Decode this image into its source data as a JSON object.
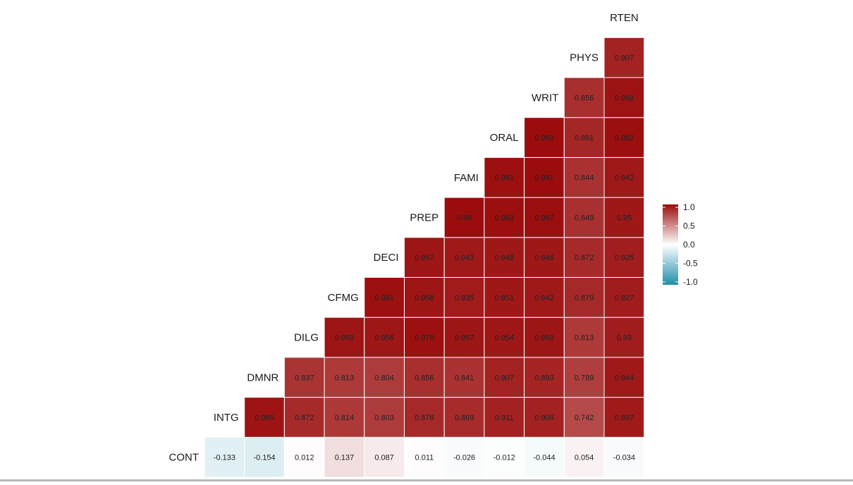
{
  "chart_data": {
    "type": "heatmap",
    "variables": [
      "CONT",
      "INTG",
      "DMNR",
      "DILG",
      "CFMG",
      "DECI",
      "PREP",
      "FAMI",
      "ORAL",
      "WRIT",
      "PHYS",
      "RTEN"
    ],
    "row_labels": [
      "CONT",
      "INTG",
      "DMNR",
      "DILG",
      "CFMG",
      "DECI",
      "PREP",
      "FAMI",
      "ORAL",
      "WRIT",
      "PHYS",
      "RTEN"
    ],
    "column_labels": [
      "INTG",
      "DMNR",
      "DILG",
      "CFMG",
      "DECI",
      "PREP",
      "FAMI",
      "ORAL",
      "WRIT",
      "PHYS",
      "RTEN"
    ],
    "cells": [
      {
        "row": "CONT",
        "col": "INTG",
        "value": -0.133,
        "label": "-0.133"
      },
      {
        "row": "CONT",
        "col": "DMNR",
        "value": -0.154,
        "label": "-0.154"
      },
      {
        "row": "CONT",
        "col": "DILG",
        "value": 0.012,
        "label": "0.012"
      },
      {
        "row": "CONT",
        "col": "CFMG",
        "value": 0.137,
        "label": "0.137"
      },
      {
        "row": "CONT",
        "col": "DECI",
        "value": 0.087,
        "label": "0.087"
      },
      {
        "row": "CONT",
        "col": "PREP",
        "value": 0.011,
        "label": "0.011"
      },
      {
        "row": "CONT",
        "col": "FAMI",
        "value": -0.026,
        "label": "-0.026"
      },
      {
        "row": "CONT",
        "col": "ORAL",
        "value": -0.012,
        "label": "-0.012"
      },
      {
        "row": "CONT",
        "col": "WRIT",
        "value": -0.044,
        "label": "-0.044"
      },
      {
        "row": "CONT",
        "col": "PHYS",
        "value": 0.054,
        "label": "0.054"
      },
      {
        "row": "CONT",
        "col": "RTEN",
        "value": -0.034,
        "label": "-0.034"
      },
      {
        "row": "INTG",
        "col": "DMNR",
        "value": 0.965,
        "label": "0.965"
      },
      {
        "row": "INTG",
        "col": "DILG",
        "value": 0.872,
        "label": "0.872"
      },
      {
        "row": "INTG",
        "col": "CFMG",
        "value": 0.814,
        "label": "0.814"
      },
      {
        "row": "INTG",
        "col": "DECI",
        "value": 0.803,
        "label": "0.803"
      },
      {
        "row": "INTG",
        "col": "PREP",
        "value": 0.878,
        "label": "0.878"
      },
      {
        "row": "INTG",
        "col": "FAMI",
        "value": 0.869,
        "label": "0.869"
      },
      {
        "row": "INTG",
        "col": "ORAL",
        "value": 0.911,
        "label": "0.911"
      },
      {
        "row": "INTG",
        "col": "WRIT",
        "value": 0.909,
        "label": "0.909"
      },
      {
        "row": "INTG",
        "col": "PHYS",
        "value": 0.742,
        "label": "0.742"
      },
      {
        "row": "INTG",
        "col": "RTEN",
        "value": 0.937,
        "label": "0.937"
      },
      {
        "row": "DMNR",
        "col": "DILG",
        "value": 0.837,
        "label": "0.837"
      },
      {
        "row": "DMNR",
        "col": "CFMG",
        "value": 0.813,
        "label": "0.813"
      },
      {
        "row": "DMNR",
        "col": "DECI",
        "value": 0.804,
        "label": "0.804"
      },
      {
        "row": "DMNR",
        "col": "PREP",
        "value": 0.856,
        "label": "0.856"
      },
      {
        "row": "DMNR",
        "col": "FAMI",
        "value": 0.841,
        "label": "0.841"
      },
      {
        "row": "DMNR",
        "col": "ORAL",
        "value": 0.907,
        "label": "0.907"
      },
      {
        "row": "DMNR",
        "col": "WRIT",
        "value": 0.893,
        "label": "0.893"
      },
      {
        "row": "DMNR",
        "col": "PHYS",
        "value": 0.789,
        "label": "0.789"
      },
      {
        "row": "DMNR",
        "col": "RTEN",
        "value": 0.944,
        "label": "0.944"
      },
      {
        "row": "DILG",
        "col": "CFMG",
        "value": 0.959,
        "label": "0.959"
      },
      {
        "row": "DILG",
        "col": "DECI",
        "value": 0.956,
        "label": "0.956"
      },
      {
        "row": "DILG",
        "col": "PREP",
        "value": 0.979,
        "label": "0.979"
      },
      {
        "row": "DILG",
        "col": "FAMI",
        "value": 0.957,
        "label": "0.957"
      },
      {
        "row": "DILG",
        "col": "ORAL",
        "value": 0.954,
        "label": "0.954"
      },
      {
        "row": "DILG",
        "col": "WRIT",
        "value": 0.959,
        "label": "0.959"
      },
      {
        "row": "DILG",
        "col": "PHYS",
        "value": 0.813,
        "label": "0.813"
      },
      {
        "row": "DILG",
        "col": "RTEN",
        "value": 0.93,
        "label": "0.93"
      },
      {
        "row": "CFMG",
        "col": "DECI",
        "value": 0.981,
        "label": "0.981"
      },
      {
        "row": "CFMG",
        "col": "PREP",
        "value": 0.958,
        "label": "0.958"
      },
      {
        "row": "CFMG",
        "col": "FAMI",
        "value": 0.935,
        "label": "0.935"
      },
      {
        "row": "CFMG",
        "col": "ORAL",
        "value": 0.951,
        "label": "0.951"
      },
      {
        "row": "CFMG",
        "col": "WRIT",
        "value": 0.942,
        "label": "0.942"
      },
      {
        "row": "CFMG",
        "col": "PHYS",
        "value": 0.879,
        "label": "0.879"
      },
      {
        "row": "CFMG",
        "col": "RTEN",
        "value": 0.927,
        "label": "0.927"
      },
      {
        "row": "DECI",
        "col": "PREP",
        "value": 0.957,
        "label": "0.957"
      },
      {
        "row": "DECI",
        "col": "FAMI",
        "value": 0.943,
        "label": "0.943"
      },
      {
        "row": "DECI",
        "col": "ORAL",
        "value": 0.948,
        "label": "0.948"
      },
      {
        "row": "DECI",
        "col": "WRIT",
        "value": 0.946,
        "label": "0.946"
      },
      {
        "row": "DECI",
        "col": "PHYS",
        "value": 0.872,
        "label": "0.872"
      },
      {
        "row": "DECI",
        "col": "RTEN",
        "value": 0.925,
        "label": "0.925"
      },
      {
        "row": "PREP",
        "col": "FAMI",
        "value": 0.99,
        "label": "0.99"
      },
      {
        "row": "PREP",
        "col": "ORAL",
        "value": 0.983,
        "label": "0.983"
      },
      {
        "row": "PREP",
        "col": "WRIT",
        "value": 0.987,
        "label": "0.987"
      },
      {
        "row": "PREP",
        "col": "PHYS",
        "value": 0.849,
        "label": "0.849"
      },
      {
        "row": "PREP",
        "col": "RTEN",
        "value": 0.95,
        "label": "0.95"
      },
      {
        "row": "FAMI",
        "col": "ORAL",
        "value": 0.981,
        "label": "0.981"
      },
      {
        "row": "FAMI",
        "col": "WRIT",
        "value": 0.991,
        "label": "0.991"
      },
      {
        "row": "FAMI",
        "col": "PHYS",
        "value": 0.844,
        "label": "0.844"
      },
      {
        "row": "FAMI",
        "col": "RTEN",
        "value": 0.942,
        "label": "0.942"
      },
      {
        "row": "ORAL",
        "col": "WRIT",
        "value": 0.993,
        "label": "0.993"
      },
      {
        "row": "ORAL",
        "col": "PHYS",
        "value": 0.891,
        "label": "0.891"
      },
      {
        "row": "ORAL",
        "col": "RTEN",
        "value": 0.982,
        "label": "0.982"
      },
      {
        "row": "WRIT",
        "col": "PHYS",
        "value": 0.856,
        "label": "0.856"
      },
      {
        "row": "WRIT",
        "col": "RTEN",
        "value": 0.968,
        "label": "0.968"
      },
      {
        "row": "PHYS",
        "col": "RTEN",
        "value": 0.907,
        "label": "0.907"
      }
    ],
    "color_scale": {
      "min": -1.0,
      "mid": 0.0,
      "max": 1.0,
      "low_color": "#1f8eaa",
      "mid_color": "#ffffff",
      "high_color": "#9a0b0b",
      "legend_ticks": [
        1.0,
        0.5,
        0.0,
        -0.5,
        -1.0
      ],
      "legend_tick_labels": [
        "1.0",
        "0.5",
        "0.0",
        "-0.5",
        "-1.0"
      ],
      "legend_placement": "right"
    },
    "colors": {
      "cell_text": "#222222",
      "cell_border": "#ffffff",
      "label_text": "#1a1a1a",
      "background": "#ffffff"
    },
    "title": "",
    "xlabel": "",
    "ylabel": "",
    "grid": false
  }
}
